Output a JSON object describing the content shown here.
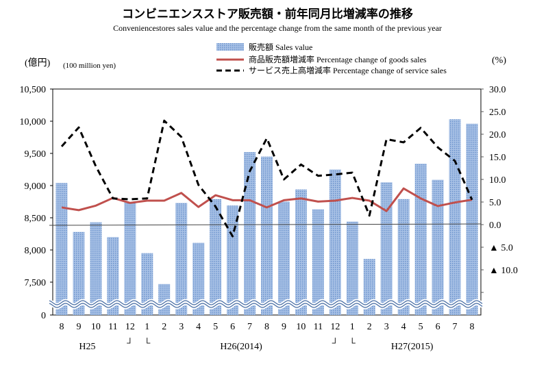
{
  "chart_data": {
    "type": "bar+line",
    "title": "コンビニエンスストア販売額・前年同月比増減率の推移",
    "subtitle": "Conveniencestores sales value and the percentage change from the same month of the previous year",
    "ylabel_left": "(億円)",
    "ylabel_left_en": "(100 million yen)",
    "ylabel_right": "(%)",
    "categories": [
      "8",
      "9",
      "10",
      "11",
      "12",
      "1",
      "2",
      "3",
      "4",
      "5",
      "6",
      "7",
      "8",
      "9",
      "10",
      "11",
      "12",
      "1",
      "2",
      "3",
      "4",
      "5",
      "6",
      "7",
      "8"
    ],
    "year_labels": [
      {
        "label": "H25",
        "at": 1.5
      },
      {
        "label": "H26(2014)",
        "at": 10.5
      },
      {
        "label": "H27(2015)",
        "at": 20.5
      }
    ],
    "year_marks": [
      {
        "label": "┘",
        "at": 4
      },
      {
        "label": "└",
        "at": 5
      },
      {
        "label": "┘",
        "at": 16
      },
      {
        "label": "└",
        "at": 17
      }
    ],
    "left_axis": {
      "ticks": [
        0,
        7500,
        8000,
        8500,
        9000,
        9500,
        10000,
        10500
      ],
      "tick_labels": [
        "0",
        "7,500",
        "8,000",
        "8,500",
        "9,000",
        "9,500",
        "10,000",
        "10,500"
      ],
      "broken_between": [
        0,
        7500
      ]
    },
    "right_axis": {
      "ticks": [
        30,
        25,
        20,
        15,
        10,
        5,
        0,
        -5,
        -10
      ],
      "tick_labels": [
        "30.0",
        "25.0",
        "20.0",
        "15.0",
        "10.0",
        "5.0",
        "0.0",
        "▲ 5.0",
        "▲ 10.0"
      ]
    },
    "series": [
      {
        "name": "販売額 Sales value",
        "type": "bar",
        "axis": "left",
        "color": "#7fa6d8",
        "values": [
          9040,
          8280,
          8430,
          8200,
          8740,
          7950,
          7470,
          8730,
          8110,
          8790,
          8690,
          9520,
          9450,
          8750,
          8940,
          8630,
          9250,
          8440,
          7860,
          9050,
          8790,
          9340,
          9090,
          10030,
          9960
        ]
      },
      {
        "name": "商品販売額増減率 Percentage change of goods sales",
        "type": "line",
        "axis": "right",
        "color": "#c0504d",
        "values": [
          3.8,
          3.2,
          4.2,
          5.9,
          4.8,
          5.3,
          5.3,
          7.0,
          3.9,
          6.5,
          5.4,
          5.4,
          3.8,
          5.4,
          5.8,
          5.1,
          5.3,
          5.9,
          5.3,
          3.0,
          8.0,
          5.8,
          4.1,
          4.9,
          5.5
        ]
      },
      {
        "name": "サービス売上高増減率 Percentage change of service sales",
        "type": "dashed-line",
        "axis": "right",
        "color": "#000000",
        "values": [
          17.3,
          21.5,
          12.9,
          5.8,
          5.6,
          5.8,
          23.0,
          19.4,
          8.8,
          4.0,
          -2.6,
          11.8,
          19.1,
          10.0,
          13.3,
          10.8,
          11.1,
          11.5,
          2.0,
          18.9,
          18.2,
          21.4,
          17.1,
          14.1,
          5.5
        ]
      }
    ]
  }
}
